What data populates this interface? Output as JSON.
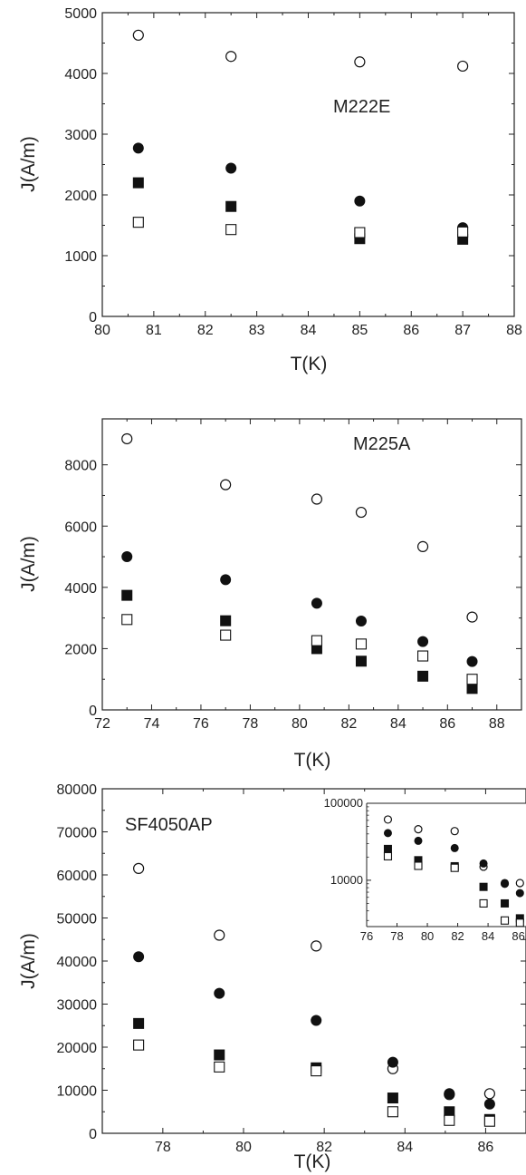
{
  "chart_data": [
    {
      "type": "scatter",
      "title": "M222E",
      "xlabel": "T(K)",
      "ylabel": "J(A/m)",
      "xlim": [
        80,
        88
      ],
      "ylim": [
        0,
        5000
      ],
      "xticks": [
        80,
        81,
        82,
        83,
        84,
        85,
        86,
        87,
        88
      ],
      "yticks": [
        0,
        1000,
        2000,
        3000,
        4000,
        5000
      ],
      "series": [
        {
          "marker": "open-circle",
          "x": [
            80.7,
            82.5,
            85.0,
            87.0
          ],
          "y": [
            4630,
            4280,
            4190,
            4120
          ]
        },
        {
          "marker": "filled-circle",
          "x": [
            80.7,
            82.5,
            85.0,
            87.0
          ],
          "y": [
            2770,
            2440,
            1900,
            1460
          ]
        },
        {
          "marker": "filled-square",
          "x": [
            80.7,
            82.5,
            85.0,
            87.0
          ],
          "y": [
            2200,
            1810,
            1280,
            1270
          ]
        },
        {
          "marker": "open-square",
          "x": [
            80.7,
            82.5,
            85.0,
            87.0
          ],
          "y": [
            1550,
            1430,
            1380,
            1390
          ]
        }
      ]
    },
    {
      "type": "scatter",
      "title": "M225A",
      "xlabel": "T(K)",
      "ylabel": "J(A/m)",
      "xlim": [
        72,
        89
      ],
      "ylim": [
        0,
        9500
      ],
      "xticks": [
        72,
        74,
        76,
        78,
        80,
        82,
        84,
        86,
        88
      ],
      "yticks": [
        0,
        2000,
        4000,
        6000,
        8000
      ],
      "series": [
        {
          "marker": "open-circle",
          "x": [
            73,
            77,
            80.7,
            82.5,
            85,
            87
          ],
          "y": [
            8850,
            7350,
            6880,
            6450,
            5330,
            3030
          ]
        },
        {
          "marker": "filled-circle",
          "x": [
            73,
            77,
            80.7,
            82.5,
            85,
            87
          ],
          "y": [
            5000,
            4250,
            3480,
            2900,
            2230,
            1580
          ]
        },
        {
          "marker": "filled-square",
          "x": [
            73,
            77,
            80.7,
            82.5,
            85,
            87
          ],
          "y": [
            3740,
            2910,
            2000,
            1590,
            1100,
            700
          ]
        },
        {
          "marker": "open-square",
          "x": [
            73,
            77,
            80.7,
            82.5,
            85,
            87
          ],
          "y": [
            2950,
            2440,
            2260,
            2150,
            1760,
            1000
          ]
        }
      ]
    },
    {
      "type": "scatter",
      "title": "SF4050AP",
      "xlabel": "T(K)",
      "ylabel": "J(A/m)",
      "xlim": [
        76.5,
        87
      ],
      "ylim": [
        0,
        80000
      ],
      "xticks": [
        78,
        80,
        82,
        84,
        86
      ],
      "yticks": [
        0,
        10000,
        20000,
        30000,
        40000,
        50000,
        60000,
        70000,
        80000
      ],
      "series": [
        {
          "marker": "open-circle",
          "x": [
            77.4,
            79.4,
            81.8,
            83.7,
            85.1,
            86.1
          ],
          "y": [
            61500,
            46000,
            43500,
            15000,
            9000,
            9200
          ]
        },
        {
          "marker": "filled-circle",
          "x": [
            77.4,
            79.4,
            81.8,
            83.7,
            85.1,
            86.1
          ],
          "y": [
            41000,
            32500,
            26200,
            16500,
            9200,
            6800
          ]
        },
        {
          "marker": "filled-square",
          "x": [
            77.4,
            79.4,
            81.8,
            83.7,
            85.1,
            86.1
          ],
          "y": [
            25500,
            18200,
            15200,
            8200,
            5000,
            3200
          ]
        },
        {
          "marker": "open-square",
          "x": [
            77.4,
            79.4,
            81.8,
            83.7,
            85.1,
            86.1
          ],
          "y": [
            20500,
            15400,
            14500,
            5000,
            3000,
            2800
          ]
        }
      ],
      "inset": {
        "yscale": "log",
        "xlim": [
          76,
          86.5
        ],
        "ylim": [
          2500,
          100000
        ],
        "xticks": [
          76,
          78,
          80,
          82,
          84,
          86
        ],
        "xtick_labels": [
          "76",
          "78",
          "80",
          "82",
          "84",
          "86"
        ],
        "yticks": [
          10000,
          100000
        ],
        "ytick_labels": [
          "10000",
          "100000"
        ],
        "series": [
          {
            "marker": "open-circle",
            "x": [
              77.4,
              79.4,
              81.8,
              83.7,
              85.1,
              86.1
            ],
            "y": [
              61500,
              46000,
              43500,
              15000,
              9000,
              9200
            ]
          },
          {
            "marker": "filled-circle",
            "x": [
              77.4,
              79.4,
              81.8,
              83.7,
              85.1,
              86.1
            ],
            "y": [
              41000,
              32500,
              26200,
              16500,
              9200,
              6800
            ]
          },
          {
            "marker": "filled-square",
            "x": [
              77.4,
              79.4,
              81.8,
              83.7,
              85.1,
              86.1
            ],
            "y": [
              25500,
              18200,
              15200,
              8200,
              5000,
              3200
            ]
          },
          {
            "marker": "open-square",
            "x": [
              77.4,
              79.4,
              81.8,
              83.7,
              85.1,
              86.1
            ],
            "y": [
              20500,
              15400,
              14500,
              5000,
              3000,
              2800
            ]
          }
        ]
      }
    }
  ]
}
